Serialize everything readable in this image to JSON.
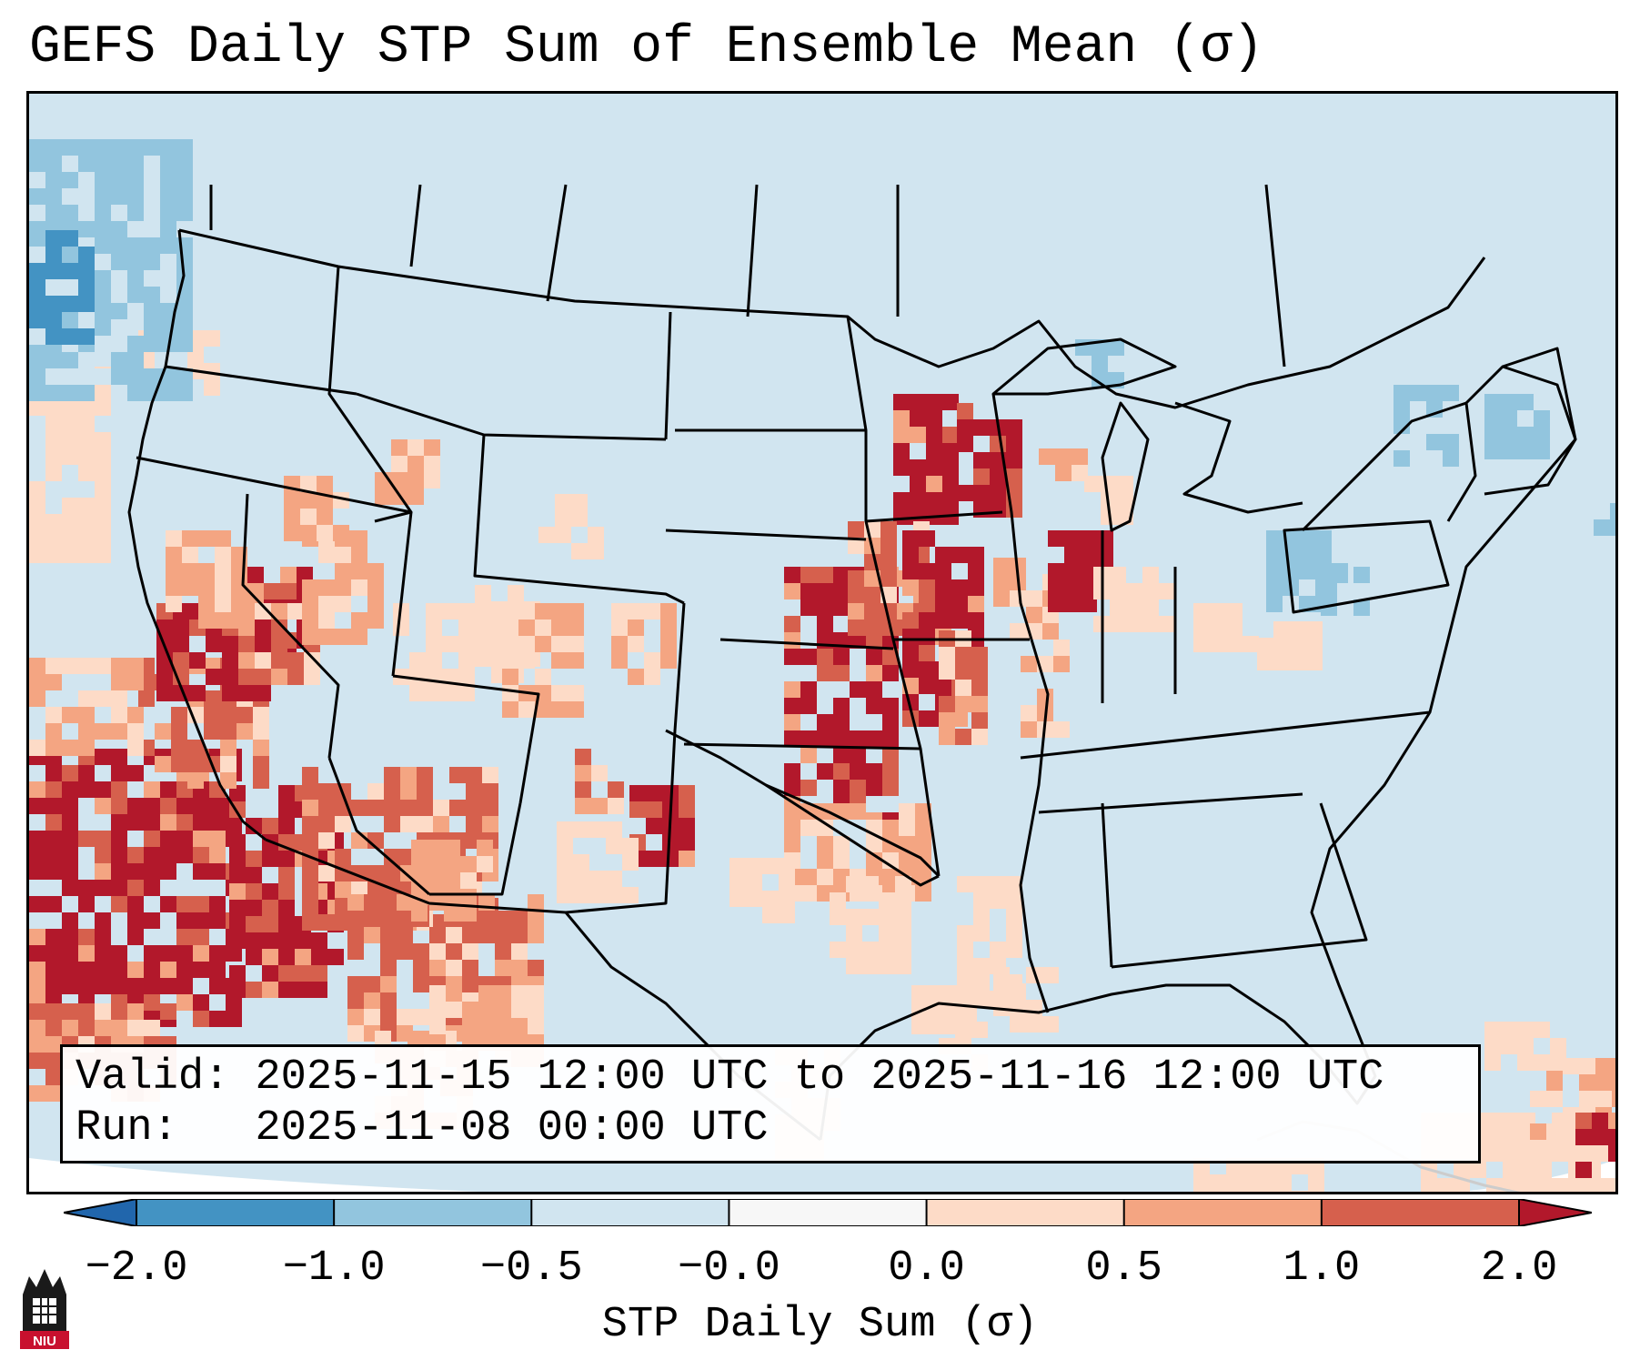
{
  "title": "GEFS Daily STP Sum of Ensemble Mean (σ)",
  "info": {
    "valid_label": "Valid:",
    "valid_value": "2025-11-15 12:00 UTC to 2025-11-16 12:00 UTC",
    "run_label": "Run:",
    "run_value": "2025-11-08 00:00 UTC"
  },
  "colorbar": {
    "label": "STP Daily Sum (σ)",
    "ticks": [
      "−2.0",
      "−1.0",
      "−0.5",
      "−0.0",
      "0.0",
      "0.5",
      "1.0",
      "2.0"
    ],
    "bins": [
      {
        "range": "< -2.0",
        "color": "#2166ac"
      },
      {
        "range": "-2.0 to -1.0",
        "color": "#4393c3"
      },
      {
        "range": "-1.0 to -0.5",
        "color": "#92c5de"
      },
      {
        "range": "-0.5 to -0.0",
        "color": "#d1e5f0"
      },
      {
        "range": "-0.0 to 0.0",
        "color": "#f7f7f7"
      },
      {
        "range": "0.0 to 0.5",
        "color": "#fddbc7"
      },
      {
        "range": "0.5 to 1.0",
        "color": "#f4a582"
      },
      {
        "range": "1.0 to 2.0",
        "color": "#d6604d"
      },
      {
        "range": "> 2.0",
        "color": "#b2182b"
      }
    ]
  },
  "map": {
    "region": "Contiguous United States",
    "field": "GEFS ensemble mean STP daily sum (standardized anomaly)",
    "background_color": "#d1e5f0",
    "coastline_color": "#000000"
  },
  "logo": {
    "text": "NIU",
    "color": "#c8102e"
  }
}
